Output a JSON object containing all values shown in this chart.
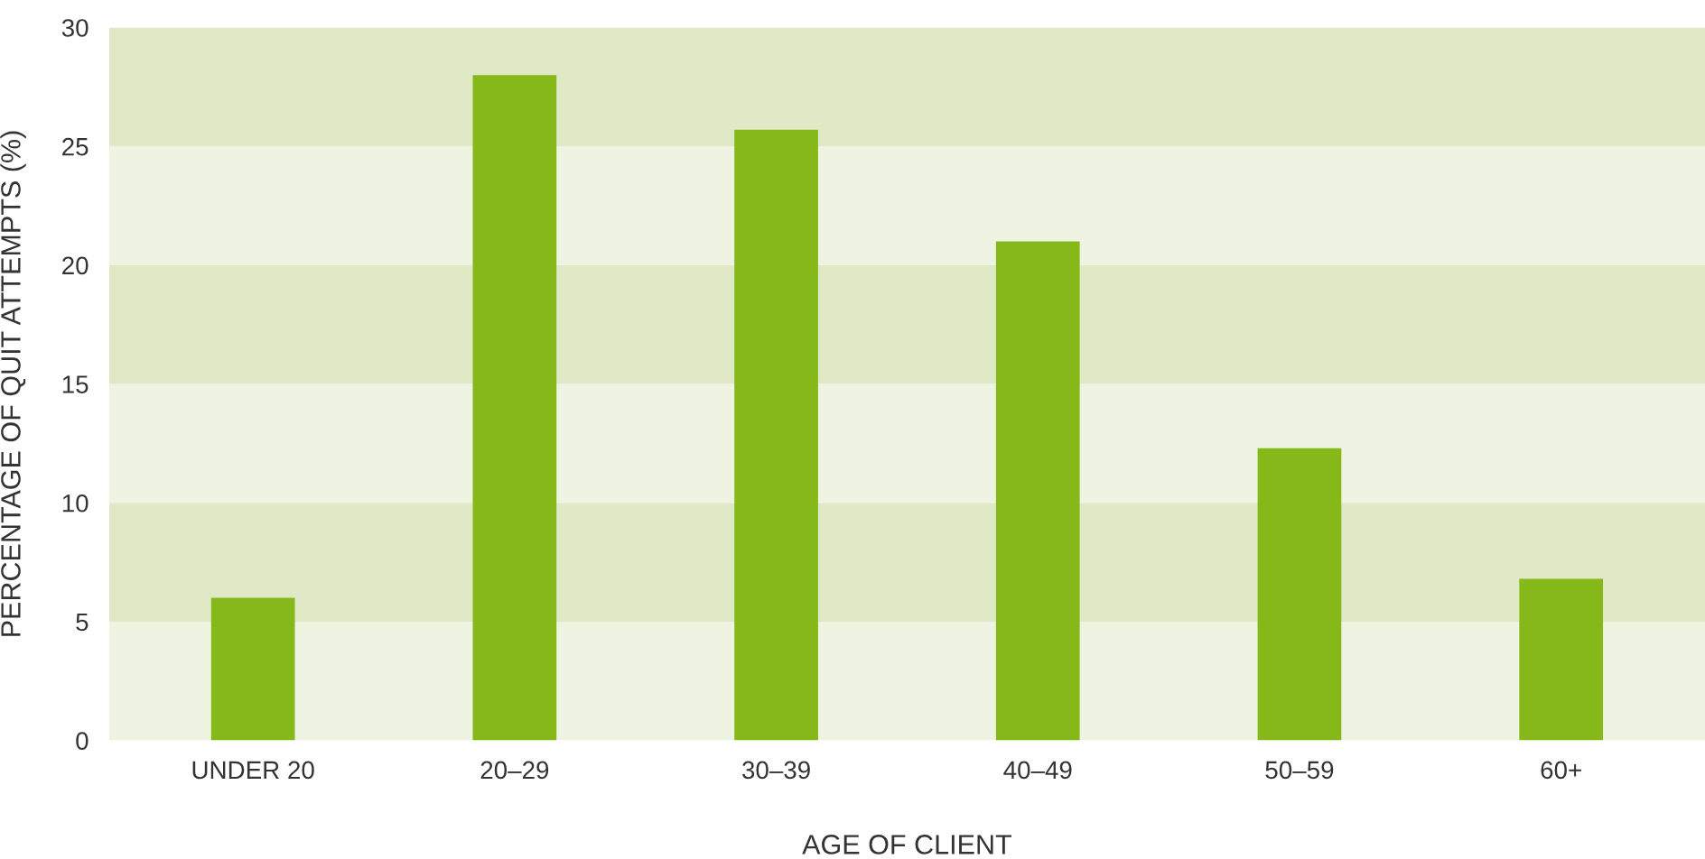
{
  "chart_data": {
    "type": "bar",
    "xlabel": "AGE OF CLIENT",
    "ylabel": "PERCENTAGE OF QUIT ATTEMPTS (%)",
    "categories": [
      "UNDER 20",
      "20–29",
      "30–39",
      "40–49",
      "50–59",
      "60+"
    ],
    "values": [
      6.0,
      28.0,
      25.7,
      21.0,
      12.3,
      6.8
    ],
    "color": "#86b81a",
    "ylim": [
      0,
      30
    ],
    "yticks": [
      0,
      5,
      10,
      15,
      20,
      25,
      30
    ],
    "grid": false,
    "bands": [
      {
        "axis": "y",
        "from": 0,
        "to": 5,
        "color": "#eef3e2"
      },
      {
        "axis": "y",
        "from": 5,
        "to": 10,
        "color": "#dfe9c6"
      },
      {
        "axis": "y",
        "from": 10,
        "to": 15,
        "color": "#eef3e2"
      },
      {
        "axis": "y",
        "from": 15,
        "to": 20,
        "color": "#dfe9c6"
      },
      {
        "axis": "y",
        "from": 20,
        "to": 25,
        "color": "#eef3e2"
      },
      {
        "axis": "y",
        "from": 25,
        "to": 30,
        "color": "#dfe9c6"
      }
    ]
  }
}
